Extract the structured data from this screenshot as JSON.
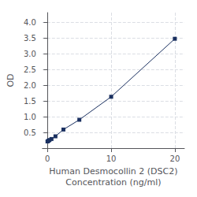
{
  "chart_data": {
    "type": "line",
    "x": [
      0,
      0.156,
      0.312,
      0.625,
      1.25,
      2.5,
      5,
      10,
      20
    ],
    "values": [
      0.212,
      0.235,
      0.257,
      0.29,
      0.375,
      0.59,
      0.9,
      1.63,
      3.47
    ],
    "xlabel": "Human Desmocollin 2 (DSC2)\nConcentration (ng/ml)",
    "ylabel": "OD",
    "xlim": [
      -0.8,
      21.5
    ],
    "ylim": [
      0.0,
      4.3
    ],
    "xticks": [
      0,
      10,
      20
    ],
    "yticks": [
      0.5,
      {
        "value": 1.0,
        "label": "1.0"
      },
      1.5,
      {
        "value": 2.0,
        "label": "2.0"
      },
      2.5,
      {
        "value": 3.0,
        "label": "3.0"
      },
      3.5,
      {
        "value": 4.0,
        "label": "4.0"
      }
    ],
    "color": "#1a3060",
    "marker": "square",
    "grid": true
  }
}
